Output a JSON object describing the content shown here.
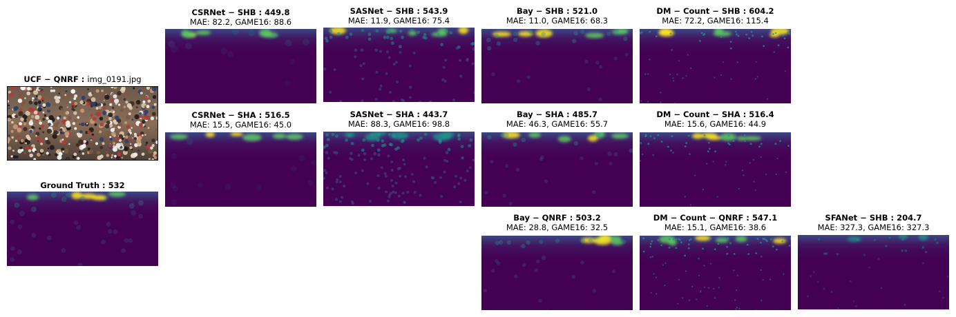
{
  "source": {
    "dataset": "UCF − QNRF :",
    "file": "img_0191.jpg"
  },
  "ground_truth": {
    "label": "Ground Truth : 532"
  },
  "panels": [
    {
      "id": "csrnet-shb",
      "title": "CSRNet − SHB : 449.8",
      "metrics": "MAE: 82.2, GAME16: 88.6"
    },
    {
      "id": "sasnet-shb",
      "title": "SASNet − SHB : 543.9",
      "metrics": "MAE: 11.9, GAME16: 75.4"
    },
    {
      "id": "bay-shb",
      "title": "Bay − SHB : 521.0",
      "metrics": "MAE: 11.0, GAME16: 68.3"
    },
    {
      "id": "dmcount-shb",
      "title": "DM − Count − SHB : 604.2",
      "metrics": "MAE: 72.2, GAME16: 115.4"
    },
    {
      "id": "csrnet-sha",
      "title": "CSRNet − SHA : 516.5",
      "metrics": "MAE: 15.5, GAME16: 45.0"
    },
    {
      "id": "sasnet-sha",
      "title": "SASNet − SHA : 443.7",
      "metrics": "MAE: 88.3, GAME16: 98.8"
    },
    {
      "id": "bay-sha",
      "title": "Bay − SHA : 485.7",
      "metrics": "MAE: 46.3, GAME16: 55.7"
    },
    {
      "id": "dmcount-sha",
      "title": "DM − Count − SHA : 516.4",
      "metrics": "MAE: 15.6, GAME16: 44.9"
    },
    {
      "id": "bay-qnrf",
      "title": "Bay − QNRF : 503.2",
      "metrics": "MAE: 28.8, GAME16: 32.5"
    },
    {
      "id": "dmcount-qnrf",
      "title": "DM − Count − QNRF : 547.1",
      "metrics": "MAE: 15.1, GAME16: 38.6"
    },
    {
      "id": "sfanet-shb",
      "title": "SFANet − SHB : 204.7",
      "metrics": "MAE: 327.3, GAME16: 327.3"
    }
  ],
  "colors": {
    "background": "#440154",
    "mid": "#3b528b",
    "teal": "#21918c",
    "green": "#5ec962",
    "yellow": "#fde725"
  }
}
